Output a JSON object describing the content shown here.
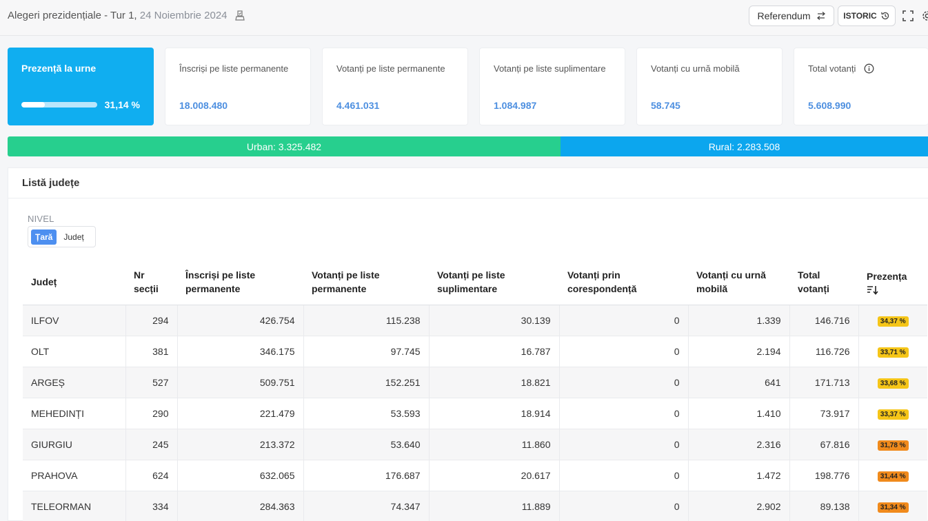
{
  "header": {
    "title": "Alegeri prezidențiale - Tur 1,",
    "date": "24 Noiembrie 2024",
    "referendum_label": "Referendum",
    "istoric_label": "ISTORIC"
  },
  "presence": {
    "label": "Prezență la urne",
    "percent_text": "31,14 %",
    "percent_value": 31.14
  },
  "stats": [
    {
      "label": "Înscriși pe liste permanente",
      "value": "18.008.480"
    },
    {
      "label": "Votanți pe liste permanente",
      "value": "4.461.031"
    },
    {
      "label": "Votanți pe liste suplimentare",
      "value": "1.084.987"
    },
    {
      "label": "Votanți cu urnă mobilă",
      "value": "58.745"
    },
    {
      "label": "Total votanți",
      "value": "5.608.990"
    }
  ],
  "split": {
    "urban": "Urban: 3.325.482",
    "rural": "Rural: 2.283.508"
  },
  "list": {
    "title": "Listă județe",
    "nivel_label": "NIVEL",
    "nivel_options": [
      "Țară",
      "Județ"
    ],
    "columns": [
      "Județ",
      "Nr secții",
      "Înscriși pe liste permanente",
      "Votanți pe liste permanente",
      "Votanți pe liste suplimentare",
      "Votanți prin corespondență",
      "Votanți cu urnă mobilă",
      "Total votanți",
      "Prezența"
    ],
    "rows": [
      {
        "judet": "ILFOV",
        "sectii": "294",
        "inscrisi": "426.754",
        "perm": "115.238",
        "supl": "30.139",
        "coresp": "0",
        "mobila": "1.339",
        "total": "146.716",
        "prezenta": "34,37 %",
        "color": "#f5c518"
      },
      {
        "judet": "OLT",
        "sectii": "381",
        "inscrisi": "346.175",
        "perm": "97.745",
        "supl": "16.787",
        "coresp": "0",
        "mobila": "2.194",
        "total": "116.726",
        "prezenta": "33,71 %",
        "color": "#f5c518"
      },
      {
        "judet": "ARGEȘ",
        "sectii": "527",
        "inscrisi": "509.751",
        "perm": "152.251",
        "supl": "18.821",
        "coresp": "0",
        "mobila": "641",
        "total": "171.713",
        "prezenta": "33,68 %",
        "color": "#f5c518"
      },
      {
        "judet": "MEHEDINȚI",
        "sectii": "290",
        "inscrisi": "221.479",
        "perm": "53.593",
        "supl": "18.914",
        "coresp": "0",
        "mobila": "1.410",
        "total": "73.917",
        "prezenta": "33,37 %",
        "color": "#f5c518"
      },
      {
        "judet": "GIURGIU",
        "sectii": "245",
        "inscrisi": "213.372",
        "perm": "53.640",
        "supl": "11.860",
        "coresp": "0",
        "mobila": "2.316",
        "total": "67.816",
        "prezenta": "31,78 %",
        "color": "#f08a1c"
      },
      {
        "judet": "PRAHOVA",
        "sectii": "624",
        "inscrisi": "632.065",
        "perm": "176.687",
        "supl": "20.617",
        "coresp": "0",
        "mobila": "1.472",
        "total": "198.776",
        "prezenta": "31,44 %",
        "color": "#f08a1c"
      },
      {
        "judet": "TELEORMAN",
        "sectii": "334",
        "inscrisi": "284.363",
        "perm": "74.347",
        "supl": "11.889",
        "coresp": "0",
        "mobila": "2.902",
        "total": "89.138",
        "prezenta": "31,34 %",
        "color": "#f08a1c"
      }
    ]
  },
  "icons": [
    "ballot-icon",
    "swap-icon",
    "history-icon",
    "fullscreen-icon",
    "settings-icon",
    "info-icon",
    "sort-desc-icon"
  ]
}
